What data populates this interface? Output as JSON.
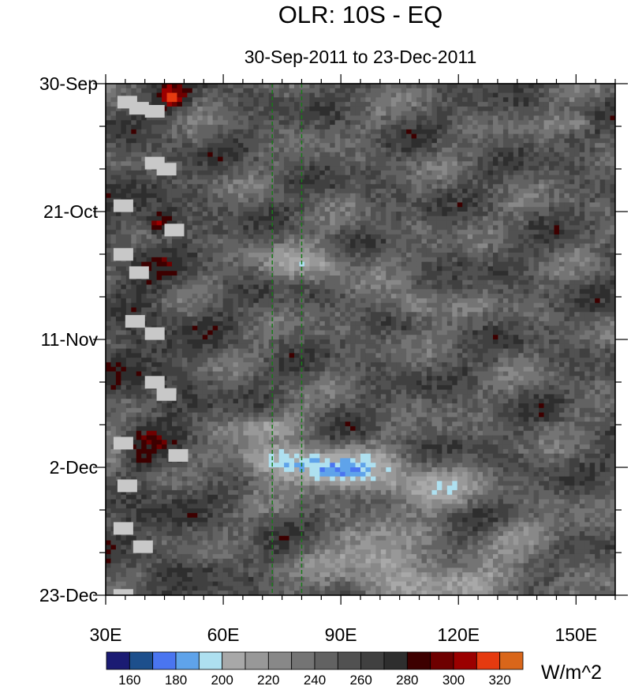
{
  "chart_data": {
    "type": "heatmap",
    "title": "OLR: 10S - EQ",
    "subtitle": "30-Sep-2011 to 23-Dec-2011",
    "xlabel": "",
    "ylabel": "",
    "x_range": [
      30,
      160
    ],
    "y_range": [
      "30-Sep-2011",
      "23-Dec-2011"
    ],
    "x_ticks": [
      {
        "value": 30,
        "label": "30E"
      },
      {
        "value": 60,
        "label": "60E"
      },
      {
        "value": 90,
        "label": "90E"
      },
      {
        "value": 120,
        "label": "120E"
      },
      {
        "value": 150,
        "label": "150E"
      }
    ],
    "y_ticks": [
      {
        "value": 0,
        "label": "30-Sep"
      },
      {
        "value": 21,
        "label": "21-Oct"
      },
      {
        "value": 42,
        "label": "11-Nov"
      },
      {
        "value": 63,
        "label": "2-Dec"
      },
      {
        "value": 84,
        "label": "23-Dec"
      }
    ],
    "reference_lines": [
      72.5,
      80
    ],
    "reference_line_color": "#1a7a1a",
    "colorbar": {
      "unit": "W/m^2",
      "levels": [
        150,
        160,
        170,
        180,
        190,
        200,
        210,
        220,
        230,
        240,
        250,
        260,
        270,
        280,
        290,
        300,
        310,
        320,
        330
      ],
      "tick_labels": [
        {
          "value": 160,
          "label": "160"
        },
        {
          "value": 180,
          "label": "180"
        },
        {
          "value": 200,
          "label": "200"
        },
        {
          "value": 220,
          "label": "220"
        },
        {
          "value": 240,
          "label": "240"
        },
        {
          "value": 260,
          "label": "260"
        },
        {
          "value": 280,
          "label": "280"
        },
        {
          "value": 300,
          "label": "300"
        },
        {
          "value": 320,
          "label": "320"
        }
      ],
      "colors": [
        "#1b1b73",
        "#1d4f8c",
        "#4a75f0",
        "#5fa3ea",
        "#aee0f0",
        "#a8a8a8",
        "#989898",
        "#888888",
        "#747474",
        "#626262",
        "#515151",
        "#404040",
        "#2e2e2e",
        "#3d0000",
        "#6e0000",
        "#9b0000",
        "#e53a10",
        "#d9661a"
      ]
    },
    "missing_color": "#c8c8c8"
  }
}
